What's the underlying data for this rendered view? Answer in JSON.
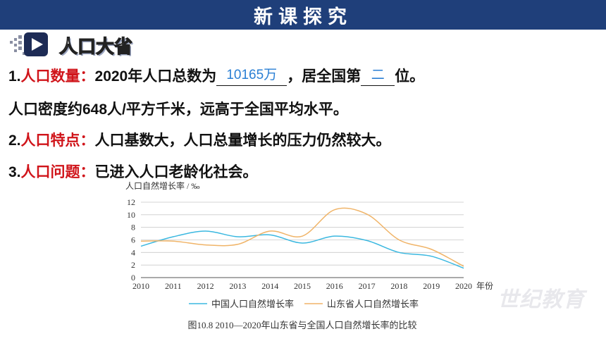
{
  "header": {
    "title": "新课探究"
  },
  "section": {
    "title": "人口大省"
  },
  "lines": {
    "l1_num": "1.",
    "l1_key": "人口数量：",
    "l1_text": "2020年人口总数为",
    "l1_blank1": "10165万",
    "l1_mid": "，居全国第",
    "l1_blank2": "二",
    "l1_end": "位。",
    "l2_text": "人口密度约648人/平方千米，远高于全国平均水平。",
    "l3_num": "2.",
    "l3_key": "人口特点：",
    "l3_text": "人口基数大，人口总量增长的压力仍然较大。",
    "l4_num": "3.",
    "l4_key": "人口问题：",
    "l4_text": "已进入人口老龄化社会。"
  },
  "watermark": "世纪教育",
  "chart_data": {
    "type": "line",
    "ylabel": "人口自然增长率 / ‰",
    "xlabel": "年份",
    "x": [
      2010,
      2011,
      2012,
      2013,
      2014,
      2015,
      2016,
      2017,
      2018,
      2019,
      2020
    ],
    "x_tick_labels": [
      "2010",
      "2011",
      "2012",
      "2013",
      "2014",
      "2015",
      "2016",
      "2017",
      "2018",
      "2019",
      "2020"
    ],
    "y_ticks": [
      0,
      2,
      4,
      6,
      8,
      10,
      12
    ],
    "ylim": [
      0,
      12
    ],
    "grid": true,
    "legend_position": "bottom",
    "caption": "图10.8 2010—2020年山东省与全国人口自然增长率的比较",
    "series": [
      {
        "name": "中国人口自然增长率",
        "color": "#3bb8e0",
        "values": [
          5.0,
          6.5,
          7.4,
          6.5,
          6.8,
          5.5,
          6.6,
          5.9,
          4.0,
          3.4,
          1.5
        ]
      },
      {
        "name": "山东省人口自然增长率",
        "color": "#f0b468",
        "values": [
          5.8,
          5.8,
          5.2,
          5.3,
          7.4,
          6.6,
          10.8,
          10.1,
          6.0,
          4.5,
          1.8
        ]
      }
    ]
  }
}
